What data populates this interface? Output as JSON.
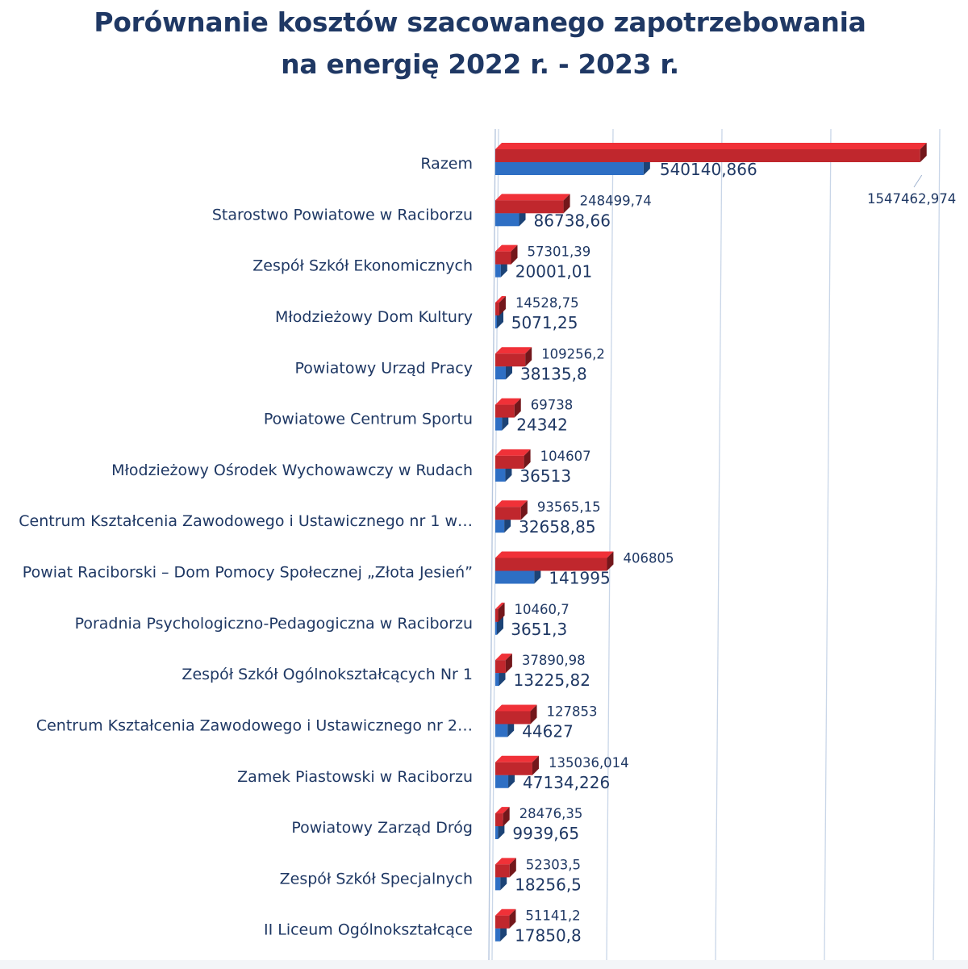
{
  "chart_data": {
    "type": "bar",
    "orientation": "horizontal",
    "title": "Porównanie kosztów szacowanego zapotrzebowania",
    "subtitle": "na energię 2022 r.  - 2023 r.",
    "categories": [
      "Razem",
      "Starostwo Powiatowe w Raciborzu",
      "Zespół Szkół Ekonomicznych",
      "Młodzieżowy Dom Kultury",
      "Powiatowy Urząd Pracy",
      "Powiatowe Centrum Sportu",
      "Młodzieżowy Ośrodek Wychowawczy w Rudach",
      "Centrum Kształcenia Zawodowego i Ustawicznego nr 1 w…",
      "Powiat Raciborski – Dom Pomocy Społecznej „Złota Jesień”",
      "Poradnia Psychologiczno-Pedagogiczna w Raciborzu",
      "Zespół Szkół Ogólnokształcących Nr 1",
      "Centrum Kształcenia Zawodowego i Ustawicznego nr 2…",
      "Zamek Piastowski w Raciborzu",
      "Powiatowy Zarząd Dróg",
      "Zespół Szkół Specjalnych",
      "II Liceum Ogólnokształcące"
    ],
    "series": [
      {
        "color": "#c0272d",
        "values": [
          1547462.974,
          248499.74,
          57301.39,
          14528.75,
          109256.2,
          69738,
          104607,
          93565.15,
          406805,
          10460.7,
          37890.98,
          127853,
          135036.014,
          28476.35,
          52303.5,
          51141.2
        ],
        "labels": [
          "1547462,974",
          "248499,74",
          "57301,39",
          "14528,75",
          "109256,2",
          "69738",
          "104607",
          "93565,15",
          "406805",
          "10460,7",
          "37890,98",
          "127853",
          "135036,014",
          "28476,35",
          "52303,5",
          "51141,2"
        ]
      },
      {
        "color": "#2e6fc4",
        "values": [
          540140.866,
          86738.66,
          20001.01,
          5071.25,
          38135.8,
          24342,
          36513,
          32658.85,
          141995,
          3651.3,
          13225.82,
          44627,
          47134.226,
          9939.65,
          18256.5,
          17850.8
        ],
        "labels": [
          "540140,866",
          "86738,66",
          "20001,01",
          "5071,25",
          "38135,8",
          "24342",
          "36513",
          "32658,85",
          "141995",
          "3651,3",
          "13225,82",
          "44627",
          "47134,226",
          "9939,65",
          "18256,5",
          "17850,8"
        ]
      }
    ],
    "xlim": [
      0,
      1600000
    ],
    "grid": true,
    "bar_style": "3d"
  }
}
